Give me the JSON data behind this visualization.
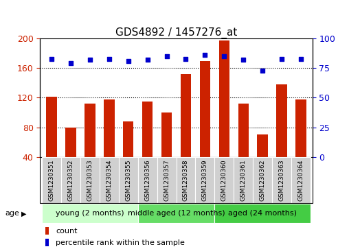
{
  "title": "GDS4892 / 1457276_at",
  "samples": [
    "GSM1230351",
    "GSM1230352",
    "GSM1230353",
    "GSM1230354",
    "GSM1230355",
    "GSM1230356",
    "GSM1230357",
    "GSM1230358",
    "GSM1230359",
    "GSM1230360",
    "GSM1230361",
    "GSM1230362",
    "GSM1230363",
    "GSM1230364"
  ],
  "counts": [
    121,
    80,
    112,
    118,
    88,
    115,
    100,
    152,
    170,
    197,
    112,
    70,
    138,
    118
  ],
  "percentiles": [
    83,
    79,
    82,
    83,
    81,
    82,
    85,
    83,
    86,
    85,
    82,
    73,
    83,
    83
  ],
  "ylim_left": [
    40,
    200
  ],
  "ylim_right": [
    0,
    100
  ],
  "yticks_left": [
    40,
    80,
    120,
    160,
    200
  ],
  "yticks_right": [
    0,
    25,
    50,
    75,
    100
  ],
  "bar_color": "#cc2200",
  "dot_color": "#0000cc",
  "groups": [
    {
      "label": "young (2 months)",
      "start": 0,
      "end": 5,
      "color": "#ccffcc"
    },
    {
      "label": "middle aged (12 months)",
      "start": 5,
      "end": 9,
      "color": "#66dd66"
    },
    {
      "label": "aged (24 months)",
      "start": 9,
      "end": 14,
      "color": "#44cc44"
    }
  ],
  "legend_items": [
    {
      "label": "count",
      "color": "#cc2200"
    },
    {
      "label": "percentile rank within the sample",
      "color": "#0000cc"
    }
  ],
  "age_label": "age",
  "title_fontsize": 11,
  "tick_fontsize": 9,
  "label_fontsize": 6.5,
  "group_fontsize": 8,
  "legend_fontsize": 8
}
